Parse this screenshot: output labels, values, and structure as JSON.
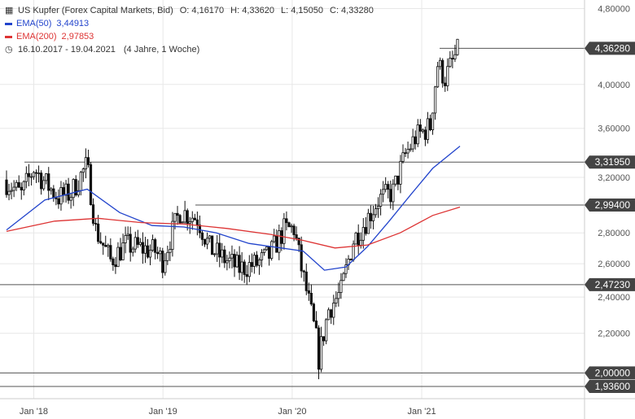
{
  "header": {
    "instrument": "US Kupfer (Forex Capital Markets, Bid)",
    "open": "O: 4,16170",
    "high": "H: 4,33620",
    "low": "L: 4,15050",
    "close": "C: 4,33280",
    "range": "16.10.2017 - 19.04.2021",
    "duration": "(4 Jahre, 1 Woche)"
  },
  "colors": {
    "ema50": "#2244cc",
    "ema200": "#dd3333",
    "candle": "#111111",
    "level": "#555555",
    "grid": "#e8e8e8",
    "label_bg": "#444444"
  },
  "chart_data": {
    "type": "line",
    "title": "",
    "xlabel": "",
    "ylabel": "",
    "y_scale": "log",
    "ylim": [
      1.88,
      4.9
    ],
    "grid": true,
    "legend_position": "top-left",
    "y_ticks": [
      "2,20000",
      "2,40000",
      "2,60000",
      "2,80000",
      "3,20000",
      "3,60000",
      "4,00000",
      "4,80000"
    ],
    "x_ticks": [
      "Jan '18",
      "Jan '19",
      "Jan '20",
      "Jan '21"
    ],
    "x_tick_dates": [
      "2018-01-01",
      "2019-01-01",
      "2020-01-01",
      "2021-01-01"
    ],
    "x_range": [
      "2017-10-16",
      "2021-04-19"
    ],
    "horizontal_levels": [
      {
        "value": 4.3628,
        "label": "4,36280"
      },
      {
        "value": 3.3195,
        "label": "3,31950"
      },
      {
        "value": 2.994,
        "label": "2,99400"
      },
      {
        "value": 2.4723,
        "label": "2,47230"
      },
      {
        "value": 2.0,
        "label": "2,00000"
      },
      {
        "value": 1.936,
        "label": "1,93600"
      }
    ],
    "series": [
      {
        "name": "US Kupfer",
        "style": "candlestick",
        "x": [
          "2017-10-16",
          "2017-12-04",
          "2018-01-08",
          "2018-02-12",
          "2018-03-19",
          "2018-04-23",
          "2018-06-04",
          "2018-06-11",
          "2018-07-02",
          "2018-08-13",
          "2018-09-24",
          "2018-11-05",
          "2018-12-17",
          "2019-01-07",
          "2019-02-25",
          "2019-04-15",
          "2019-05-20",
          "2019-06-24",
          "2019-08-12",
          "2019-09-30",
          "2019-11-04",
          "2019-12-16",
          "2020-01-13",
          "2020-02-03",
          "2020-03-16",
          "2020-03-23",
          "2020-04-20",
          "2020-05-25",
          "2020-06-29",
          "2020-08-03",
          "2020-09-07",
          "2020-10-19",
          "2020-11-23",
          "2020-12-21",
          "2021-02-01",
          "2021-02-22",
          "2021-03-15",
          "2021-04-19"
        ],
        "values": [
          3.18,
          3.07,
          3.27,
          3.15,
          3.05,
          3.08,
          3.28,
          3.22,
          2.82,
          2.62,
          2.72,
          2.7,
          2.68,
          2.62,
          2.95,
          2.9,
          2.7,
          2.64,
          2.57,
          2.6,
          2.65,
          2.82,
          2.83,
          2.57,
          2.17,
          2.07,
          2.33,
          2.43,
          2.75,
          2.88,
          3.03,
          3.09,
          3.38,
          3.52,
          3.62,
          4.2,
          4.06,
          4.33
        ]
      },
      {
        "name": "EMA(50)",
        "legend_value": "3,44913",
        "x": [
          "2017-10-16",
          "2018-02-01",
          "2018-06-01",
          "2018-09-01",
          "2018-12-01",
          "2019-03-01",
          "2019-06-01",
          "2019-09-01",
          "2019-12-01",
          "2020-02-01",
          "2020-04-01",
          "2020-06-01",
          "2020-08-01",
          "2020-10-01",
          "2020-12-01",
          "2021-02-01",
          "2021-04-19"
        ],
        "values": [
          2.82,
          3.03,
          3.11,
          2.94,
          2.85,
          2.84,
          2.8,
          2.73,
          2.7,
          2.68,
          2.56,
          2.58,
          2.71,
          2.88,
          3.07,
          3.27,
          3.449
        ]
      },
      {
        "name": "EMA(200)",
        "legend_value": "2,97853",
        "x": [
          "2017-10-16",
          "2018-03-01",
          "2018-07-01",
          "2018-11-01",
          "2019-03-01",
          "2019-07-01",
          "2019-11-01",
          "2020-02-01",
          "2020-05-01",
          "2020-08-01",
          "2020-11-01",
          "2021-02-01",
          "2021-04-19"
        ],
        "values": [
          2.81,
          2.88,
          2.9,
          2.87,
          2.86,
          2.83,
          2.79,
          2.75,
          2.7,
          2.72,
          2.8,
          2.92,
          2.979
        ]
      }
    ]
  }
}
